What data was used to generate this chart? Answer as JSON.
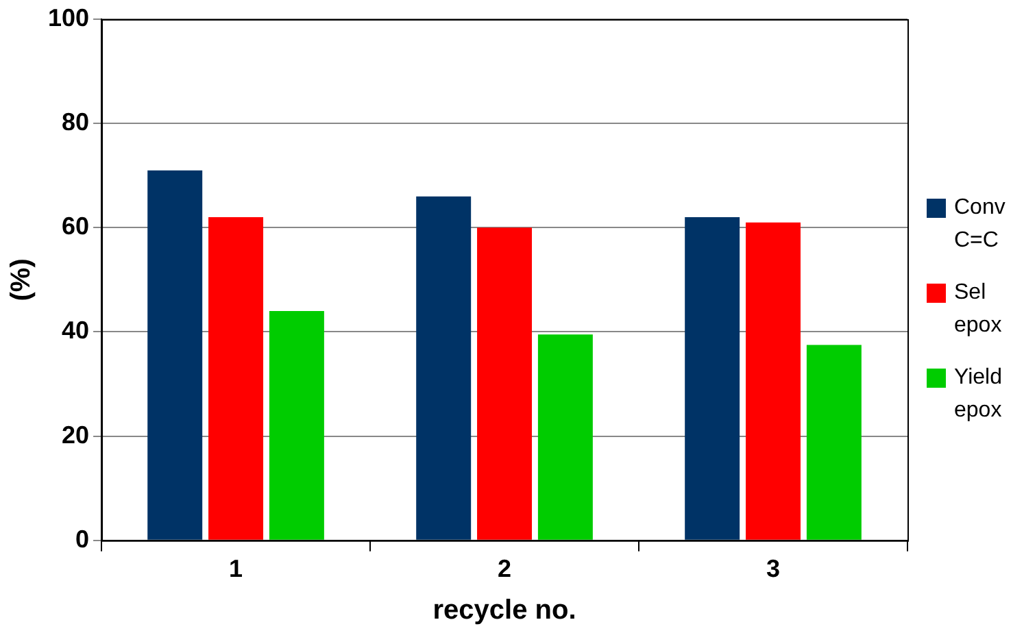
{
  "chart_data": {
    "type": "bar",
    "xlabel": "recycle no.",
    "ylabel": "(%)",
    "categories": [
      "1",
      "2",
      "3"
    ],
    "series": [
      {
        "name": "Conv C=C",
        "color": "#003366",
        "values": [
          71,
          66,
          62
        ]
      },
      {
        "name": "Sel epox",
        "color": "#ff0000",
        "values": [
          62,
          60,
          61
        ]
      },
      {
        "name": "Yield epox",
        "color": "#00cc00",
        "values": [
          44,
          39.5,
          37.5
        ]
      }
    ],
    "ylim": [
      0,
      100
    ],
    "yticks": [
      0,
      20,
      40,
      60,
      80,
      100
    ],
    "grid": "y",
    "legend": "right"
  }
}
